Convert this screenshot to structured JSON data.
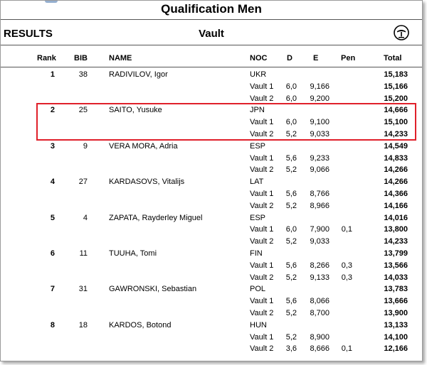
{
  "header": {
    "title": "Qualification Men",
    "section": "RESULTS",
    "event": "Vault"
  },
  "icon": {
    "name": "vault-apparatus-icon"
  },
  "columns": {
    "rank": "Rank",
    "bib": "BIB",
    "name": "NAME",
    "noc": "NOC",
    "d": "D",
    "e": "E",
    "pen": "Pen",
    "total": "Total"
  },
  "highlight_color": "#e0202a",
  "athletes": [
    {
      "rank": "1",
      "bib": "38",
      "name": "RADIVILOV, Igor",
      "noc": "UKR",
      "total": "15,183",
      "vaults": [
        {
          "label": "Vault 1",
          "d": "6,0",
          "e": "9,166",
          "pen": "",
          "total": "15,166"
        },
        {
          "label": "Vault 2",
          "d": "6,0",
          "e": "9,200",
          "pen": "",
          "total": "15,200"
        }
      ]
    },
    {
      "rank": "2",
      "bib": "25",
      "name": "SAITO, Yusuke",
      "noc": "JPN",
      "total": "14,666",
      "vaults": [
        {
          "label": "Vault 1",
          "d": "6,0",
          "e": "9,100",
          "pen": "",
          "total": "15,100"
        },
        {
          "label": "Vault 2",
          "d": "5,2",
          "e": "9,033",
          "pen": "",
          "total": "14,233"
        }
      ]
    },
    {
      "rank": "3",
      "bib": "9",
      "name": "VERA MORA, Adria",
      "noc": "ESP",
      "total": "14,549",
      "vaults": [
        {
          "label": "Vault 1",
          "d": "5,6",
          "e": "9,233",
          "pen": "",
          "total": "14,833"
        },
        {
          "label": "Vault 2",
          "d": "5,2",
          "e": "9,066",
          "pen": "",
          "total": "14,266"
        }
      ]
    },
    {
      "rank": "4",
      "bib": "27",
      "name": "KARDASOVS, Vitalijs",
      "noc": "LAT",
      "total": "14,266",
      "vaults": [
        {
          "label": "Vault 1",
          "d": "5,6",
          "e": "8,766",
          "pen": "",
          "total": "14,366"
        },
        {
          "label": "Vault 2",
          "d": "5,2",
          "e": "8,966",
          "pen": "",
          "total": "14,166"
        }
      ]
    },
    {
      "rank": "5",
      "bib": "4",
      "name": "ZAPATA, Rayderley Miguel",
      "noc": "ESP",
      "total": "14,016",
      "vaults": [
        {
          "label": "Vault 1",
          "d": "6,0",
          "e": "7,900",
          "pen": "0,1",
          "total": "13,800"
        },
        {
          "label": "Vault 2",
          "d": "5,2",
          "e": "9,033",
          "pen": "",
          "total": "14,233"
        }
      ]
    },
    {
      "rank": "6",
      "bib": "11",
      "name": "TUUHA, Tomi",
      "noc": "FIN",
      "total": "13,799",
      "vaults": [
        {
          "label": "Vault 1",
          "d": "5,6",
          "e": "8,266",
          "pen": "0,3",
          "total": "13,566"
        },
        {
          "label": "Vault 2",
          "d": "5,2",
          "e": "9,133",
          "pen": "0,3",
          "total": "14,033"
        }
      ]
    },
    {
      "rank": "7",
      "bib": "31",
      "name": "GAWRONSKI, Sebastian",
      "noc": "POL",
      "total": "13,783",
      "vaults": [
        {
          "label": "Vault 1",
          "d": "5,6",
          "e": "8,066",
          "pen": "",
          "total": "13,666"
        },
        {
          "label": "Vault 2",
          "d": "5,2",
          "e": "8,700",
          "pen": "",
          "total": "13,900"
        }
      ]
    },
    {
      "rank": "8",
      "bib": "18",
      "name": "KARDOS, Botond",
      "noc": "HUN",
      "total": "13,133",
      "vaults": [
        {
          "label": "Vault 1",
          "d": "5,2",
          "e": "8,900",
          "pen": "",
          "total": "14,100"
        },
        {
          "label": "Vault 2",
          "d": "3,6",
          "e": "8,666",
          "pen": "0,1",
          "total": "12,166"
        }
      ]
    }
  ]
}
